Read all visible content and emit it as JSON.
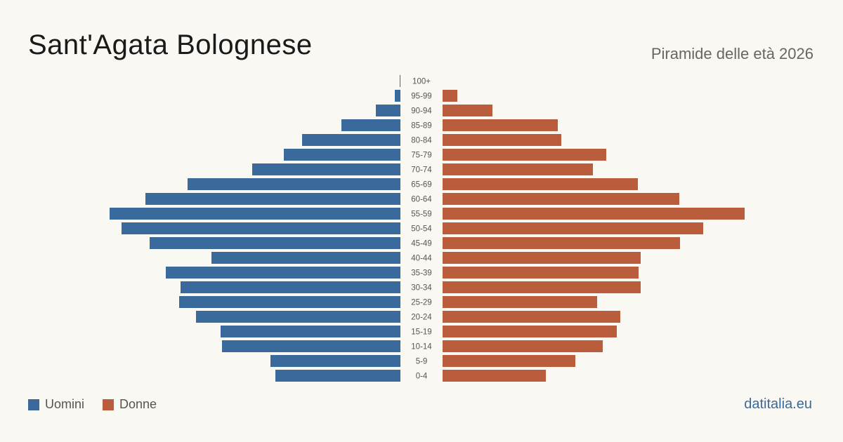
{
  "header": {
    "title": "Sant'Agata Bolognese",
    "subtitle": "Piramide delle età 2026"
  },
  "legend": {
    "men_label": "Uomini",
    "women_label": "Donne"
  },
  "footer": {
    "source": "datitalia.eu"
  },
  "colors": {
    "men": "#3a6a9c",
    "women": "#b95d3c",
    "age_label": "#555555"
  },
  "chart_data": {
    "type": "bar",
    "orientation": "horizontal-pyramid",
    "title": "Piramide delle età 2026",
    "categories": [
      "100+",
      "95-99",
      "90-94",
      "85-89",
      "80-84",
      "75-79",
      "70-74",
      "65-69",
      "60-64",
      "55-59",
      "50-54",
      "45-49",
      "40-44",
      "35-39",
      "30-34",
      "25-29",
      "20-24",
      "15-19",
      "10-14",
      "5-9",
      "0-4"
    ],
    "series": [
      {
        "name": "Uomini",
        "values": [
          1,
          8,
          35,
          84,
          140,
          166,
          211,
          303,
          363,
          414,
          397,
          357,
          269,
          334,
          313,
          315,
          291,
          256,
          254,
          185,
          178
        ]
      },
      {
        "name": "Donne",
        "values": [
          0,
          21,
          71,
          164,
          169,
          233,
          214,
          278,
          337,
          430,
          371,
          338,
          282,
          279,
          282,
          220,
          253,
          248,
          228,
          189,
          147
        ]
      }
    ],
    "xlim": [
      0,
      430
    ],
    "legend_position": "bottom-left",
    "grid": false
  }
}
